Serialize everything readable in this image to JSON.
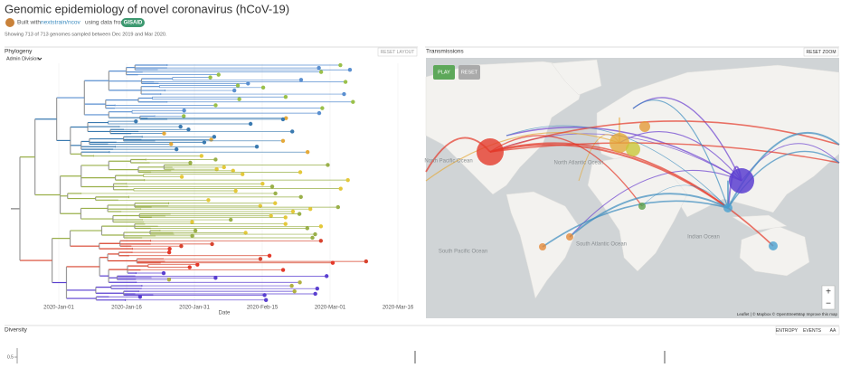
{
  "header": {
    "title": "Genomic epidemiology of novel coronavirus (hCoV-19)",
    "built_with": "Built with",
    "link": "nextstrain/ncov",
    "using": "using data from",
    "gisaid": "GISAID",
    "showing": "Showing 713 of 713 genomes sampled between Dec 2019 and Mar 2020."
  },
  "phylogeny": {
    "title": "Phylogeny",
    "reset": "RESET LAYOUT",
    "color_by": "Admin Division",
    "x_ticks": [
      "2020-Jan-01",
      "2020-Jan-16",
      "2020-Jan-31",
      "2020-Feb-15",
      "2020-Mar-01",
      "2020-Mar-16"
    ],
    "x_label": "Date"
  },
  "transmissions": {
    "title": "Transmissions",
    "reset_zoom": "RESET ZOOM",
    "play": "PLAY",
    "reset": "RESET",
    "oceans": [
      "North Atlantic Ocean",
      "South Pacific Ocean",
      "South Atlantic Ocean",
      "Indian Ocean",
      "North Pacific Ocean"
    ],
    "attribution": "Leaflet | © Mapbox © OpenStreetMap Improve this map",
    "zoom_in": "+",
    "zoom_out": "−"
  },
  "diversity": {
    "title": "Diversity",
    "tabs": [
      "ENTROPY",
      "EVENTS",
      "AA"
    ],
    "y_tick": "0.5"
  }
}
